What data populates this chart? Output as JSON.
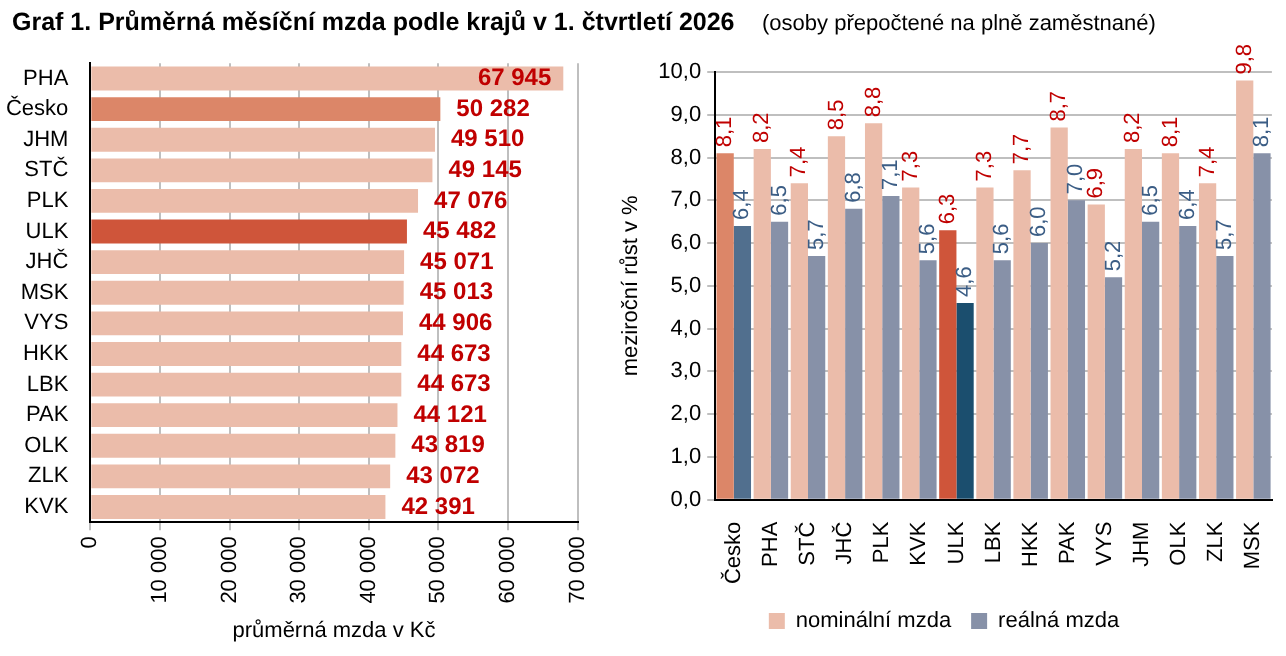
{
  "chart_data": [
    {
      "type": "bar",
      "orientation": "horizontal",
      "title": "Graf 1. Průměrná měsíční mzda podle krajů v 1. čtvrtletí 2026",
      "xlabel": "průměrná mzda v Kč",
      "categories": [
        "PHA",
        "Česko",
        "JHM",
        "STČ",
        "PLK",
        "ULK",
        "JHČ",
        "MSK",
        "VYS",
        "HKK",
        "LBK",
        "PAK",
        "OLK",
        "ZLK",
        "KVK"
      ],
      "values": [
        67945,
        50282,
        49510,
        49145,
        47076,
        45482,
        45071,
        45013,
        44906,
        44673,
        44673,
        44121,
        43819,
        43072,
        42391
      ],
      "value_labels": [
        "67 945",
        "50 282",
        "49 510",
        "49 145",
        "47 076",
        "45 482",
        "45 071",
        "45 013",
        "44 906",
        "44 673",
        "44 673",
        "44 121",
        "43 819",
        "43 072",
        "42 391"
      ],
      "colors": [
        "#ebbcaa",
        "#dc8668",
        "#ebbcaa",
        "#ebbcaa",
        "#ebbcaa",
        "#cf553a",
        "#ebbcaa",
        "#ebbcaa",
        "#ebbcaa",
        "#ebbcaa",
        "#ebbcaa",
        "#ebbcaa",
        "#ebbcaa",
        "#ebbcaa",
        "#ebbcaa"
      ],
      "xlim": [
        0,
        70000
      ],
      "xticks": [
        0,
        {
          "value": 10000,
          "label": "10 000"
        },
        {
          "value": 20000,
          "label": "20 000"
        },
        {
          "value": 30000,
          "label": "30 000"
        },
        {
          "value": 40000,
          "label": "40 000"
        },
        {
          "value": 50000,
          "label": "50 000"
        },
        {
          "value": 60000,
          "label": "60 000"
        },
        {
          "value": 70000,
          "label": "70 000"
        }
      ],
      "grid": "x"
    },
    {
      "type": "bar",
      "subtitle": "(osoby přepočtené na plně zaměstnané)",
      "ylabel": "meziroční růst v %",
      "legend": "bottom",
      "categories": [
        "Česko",
        "PHA",
        "STČ",
        "JHČ",
        "PLK",
        "KVK",
        "ULK",
        "LBK",
        "HKK",
        "PAK",
        "VYS",
        "JHM",
        "OLK",
        "ZLK",
        "MSK"
      ],
      "series": [
        {
          "name": "nominální mzda",
          "color": "#ebbcaa",
          "colors": [
            "#dc8668",
            "#ebbcaa",
            "#ebbcaa",
            "#ebbcaa",
            "#ebbcaa",
            "#ebbcaa",
            "#cf553a",
            "#ebbcaa",
            "#ebbcaa",
            "#ebbcaa",
            "#ebbcaa",
            "#ebbcaa",
            "#ebbcaa",
            "#ebbcaa",
            "#ebbcaa"
          ],
          "values": [
            8.1,
            8.2,
            7.4,
            8.5,
            8.8,
            7.3,
            6.3,
            7.3,
            7.7,
            8.7,
            6.9,
            8.2,
            8.1,
            7.4,
            9.8
          ],
          "value_labels": [
            "8,1",
            "8,2",
            "7,4",
            "8,5",
            "8,8",
            "7,3",
            "6,3",
            "7,3",
            "7,7",
            "8,7",
            "6,9",
            "8,2",
            "8,1",
            "7,4",
            "9,8"
          ]
        },
        {
          "name": "reálná mzda",
          "color": "#8791a8",
          "colors": [
            "#516f8e",
            "#8791a8",
            "#8791a8",
            "#8791a8",
            "#8791a8",
            "#8791a8",
            "#1b4e6e",
            "#8791a8",
            "#8791a8",
            "#8791a8",
            "#8791a8",
            "#8791a8",
            "#8791a8",
            "#8791a8",
            "#8791a8"
          ],
          "values": [
            6.4,
            6.5,
            5.7,
            6.8,
            7.1,
            5.6,
            4.6,
            5.6,
            6.0,
            7.0,
            5.2,
            6.5,
            6.4,
            5.7,
            8.1
          ],
          "value_labels": [
            "6,4",
            "6,5",
            "5,7",
            "6,8",
            "7,1",
            "5,6",
            "4,6",
            "5,6",
            "6,0",
            "7,0",
            "5,2",
            "6,5",
            "6,4",
            "5,7",
            "8,1"
          ]
        }
      ],
      "ylim": [
        0,
        10
      ],
      "yticks": [
        {
          "value": 0,
          "label": "0,0"
        },
        {
          "value": 1,
          "label": "1,0"
        },
        {
          "value": 2,
          "label": "2,0"
        },
        {
          "value": 3,
          "label": "3,0"
        },
        {
          "value": 4,
          "label": "4,0"
        },
        {
          "value": 5,
          "label": "5,0"
        },
        {
          "value": 6,
          "label": "6,0"
        },
        {
          "value": 7,
          "label": "7,0"
        },
        {
          "value": 8,
          "label": "8,0"
        },
        {
          "value": 9,
          "label": "9,0"
        },
        {
          "value": 10,
          "label": "10,0"
        }
      ],
      "grid": "y"
    }
  ]
}
